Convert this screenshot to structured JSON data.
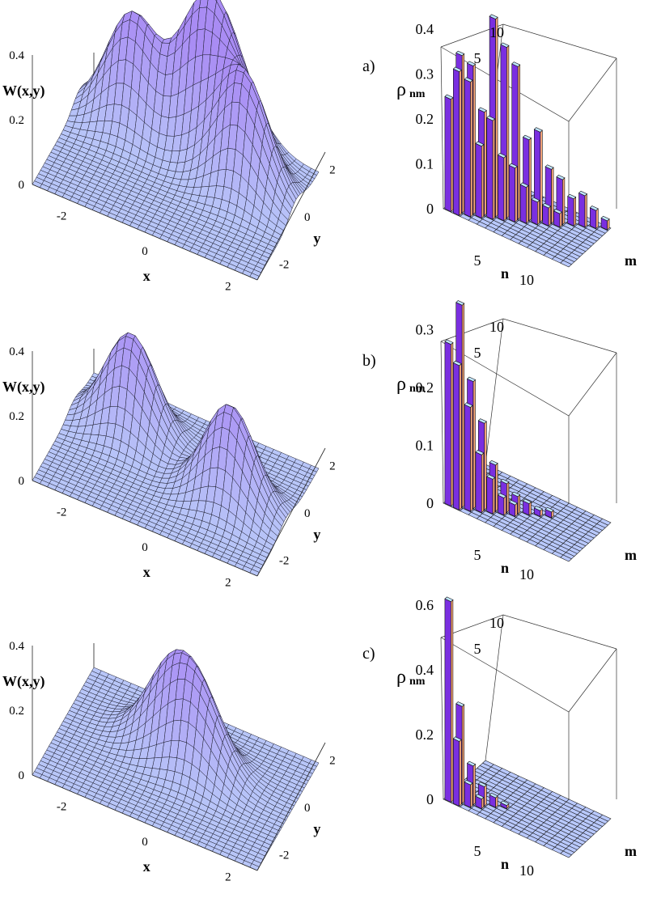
{
  "figure": {
    "panels": [
      {
        "label": "a)"
      },
      {
        "label": "b)"
      },
      {
        "label": "c)"
      }
    ]
  },
  "colors": {
    "surface_fill": "#b8c6f8",
    "surface_peak": "#a98cf4",
    "grid_line": "#1a1a2a",
    "bar_front": "#7a2fe0",
    "bar_side": "#f7a77a",
    "bar_top": "#bfe6ff",
    "floor": "#b9c9ff"
  },
  "chart_data": [
    {
      "type": "surface3d",
      "panel": "a)",
      "zlabel": "W(x,y)",
      "xlabel": "x",
      "ylabel": "y",
      "xticks": [
        "-2",
        "0",
        "2"
      ],
      "yticks": [
        "-2",
        "0",
        "2"
      ],
      "zticks": [
        "0",
        "0.2",
        "0.4"
      ],
      "xlim": [
        -3,
        3
      ],
      "ylim": [
        -3,
        3
      ],
      "zlim": [
        0,
        0.4
      ],
      "peaks": [
        {
          "x": -1.6,
          "y": 1.6,
          "height": 0.34
        },
        {
          "x": 0.2,
          "y": 1.8,
          "height": 0.38
        },
        {
          "x": 1.6,
          "y": 0.8,
          "height": 0.34
        },
        {
          "x": 0.9,
          "y": 2.4,
          "height": 0.2
        }
      ]
    },
    {
      "type": "bar3d",
      "panel": "a)",
      "zlabel": "ρnm",
      "xlabel": "n",
      "ylabel": "m",
      "xticks": [
        "5",
        "10"
      ],
      "yticks": [
        "5",
        "10"
      ],
      "zticks": [
        "0",
        "0.1",
        "0.2",
        "0.3",
        "0.4"
      ],
      "zlim": [
        0,
        0.45
      ],
      "diagonal": [
        0.25,
        0.35,
        0.33,
        0.23,
        0.44,
        0.38,
        0.34,
        0.18,
        0.2,
        0.12,
        0.1,
        0.06,
        0.07,
        0.04,
        0.02
      ],
      "offdiag": [
        0.32,
        0.3,
        0.16,
        0.22,
        0.14,
        0.12,
        0.08,
        0.05,
        0.04,
        0.03
      ]
    },
    {
      "type": "surface3d",
      "panel": "b)",
      "zlabel": "W(x,y)",
      "xlabel": "x",
      "ylabel": "y",
      "xticks": [
        "-2",
        "0",
        "2"
      ],
      "yticks": [
        "-2",
        "0",
        "2"
      ],
      "zticks": [
        "0",
        "0.2",
        "0.4"
      ],
      "xlim": [
        -3,
        3
      ],
      "ylim": [
        -3,
        3
      ],
      "zlim": [
        0,
        0.4
      ],
      "peaks": [
        {
          "x": -1.5,
          "y": 1.1,
          "height": 0.3
        },
        {
          "x": 1.5,
          "y": -0.2,
          "height": 0.3
        }
      ]
    },
    {
      "type": "bar3d",
      "panel": "b)",
      "zlabel": "ρnm",
      "xlabel": "n",
      "ylabel": "m",
      "xticks": [
        "5",
        "10"
      ],
      "yticks": [
        "5",
        "10"
      ],
      "zticks": [
        "0",
        "0.1",
        "0.2",
        "0.3"
      ],
      "zlim": [
        0,
        0.35
      ],
      "diagonal": [
        0.28,
        0.35,
        0.22,
        0.15,
        0.08,
        0.05,
        0.03,
        0.02,
        0.01,
        0.01
      ],
      "offdiag": [
        0.25,
        0.18,
        0.1,
        0.06,
        0.03,
        0.02
      ]
    },
    {
      "type": "surface3d",
      "panel": "c)",
      "zlabel": "W(x,y)",
      "xlabel": "x",
      "ylabel": "y",
      "xticks": [
        "-2",
        "0",
        "2"
      ],
      "yticks": [
        "-2",
        "0",
        "2"
      ],
      "zticks": [
        "0",
        "0.2",
        "0.4"
      ],
      "xlim": [
        -3,
        3
      ],
      "ylim": [
        -3,
        3
      ],
      "zlim": [
        0,
        0.4
      ],
      "peaks": [
        {
          "x": -0.4,
          "y": 0.9,
          "height": 0.22
        },
        {
          "x": 0.5,
          "y": 0.4,
          "height": 0.22
        }
      ]
    },
    {
      "type": "bar3d",
      "panel": "c)",
      "zlabel": "ρnm",
      "xlabel": "n",
      "ylabel": "m",
      "xticks": [
        "5",
        "10"
      ],
      "yticks": [
        "5",
        "10"
      ],
      "zticks": [
        "0",
        "0.2",
        "0.4",
        "0.6"
      ],
      "zlim": [
        0,
        0.65
      ],
      "diagonal": [
        0.62,
        0.3,
        0.12,
        0.06,
        0.03,
        0.01
      ],
      "offdiag": [
        0.2,
        0.07,
        0.03
      ]
    }
  ]
}
